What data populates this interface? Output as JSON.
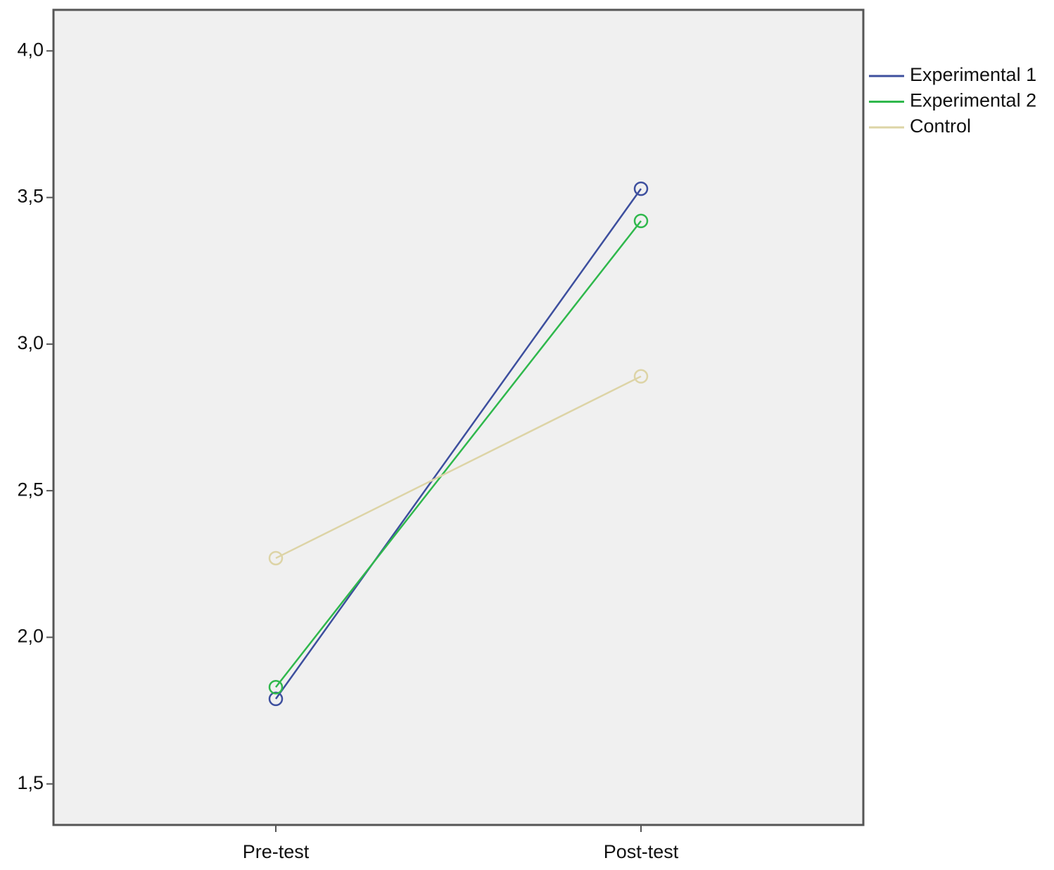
{
  "chart_data": {
    "type": "line",
    "categories": [
      "Pre-test",
      "Post-test"
    ],
    "series": [
      {
        "name": "Experimental 1",
        "color": "#3d4f9e",
        "values": [
          1.79,
          3.53
        ]
      },
      {
        "name": "Experimental 2",
        "color": "#2fb84c",
        "values": [
          1.83,
          3.42
        ]
      },
      {
        "name": "Control",
        "color": "#ddd4a6",
        "values": [
          2.27,
          2.89
        ]
      }
    ],
    "ylim": [
      1.36,
      4.14
    ],
    "yticks": [
      {
        "value": 1.5,
        "label": "1,5"
      },
      {
        "value": 2,
        "label": "2,0"
      },
      {
        "value": 2.5,
        "label": "2,5"
      },
      {
        "value": 3,
        "label": "3,0"
      },
      {
        "value": 3.5,
        "label": "3,5"
      },
      {
        "value": 4,
        "label": "4,0"
      }
    ],
    "legend": "right"
  }
}
